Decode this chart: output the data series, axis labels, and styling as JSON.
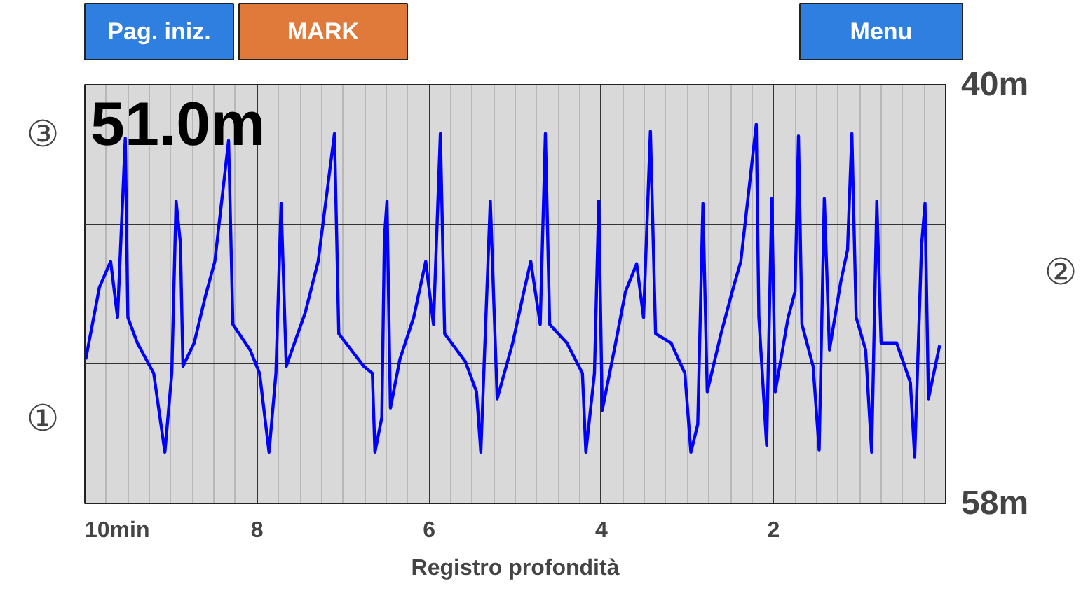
{
  "chart_data": {
    "type": "line",
    "title": "Registro profondità",
    "x": [
      9.99,
      9.83,
      9.7,
      9.62,
      9.53,
      9.5,
      9.39,
      9.2,
      9.07,
      8.99,
      8.94,
      8.89,
      8.86,
      8.73,
      8.6,
      8.49,
      8.33,
      8.28,
      8.08,
      7.97,
      7.86,
      7.78,
      7.72,
      7.66,
      7.44,
      7.29,
      7.1,
      7.05,
      6.76,
      6.66,
      6.63,
      6.55,
      6.52,
      6.49,
      6.45,
      6.34,
      6.18,
      6.04,
      5.95,
      5.87,
      5.82,
      5.58,
      5.45,
      5.4,
      5.29,
      5.21,
      5.03,
      4.9,
      4.82,
      4.71,
      4.65,
      4.6,
      4.4,
      4.22,
      4.18,
      4.08,
      4.03,
      3.99,
      3.85,
      3.72,
      3.59,
      3.51,
      3.43,
      3.37,
      3.19,
      3.03,
      2.96,
      2.88,
      2.82,
      2.77,
      2.61,
      2.48,
      2.38,
      2.2,
      2.17,
      2.08,
      2.02,
      1.98,
      1.83,
      1.75,
      1.71,
      1.67,
      1.54,
      1.47,
      1.41,
      1.35,
      1.22,
      1.14,
      1.09,
      1.04,
      0.93,
      0.86,
      0.8,
      0.75,
      0.57,
      0.41,
      0.36,
      0.28,
      0.24,
      0.2,
      0.07
    ],
    "series": [
      {
        "color": "#0000ff",
        "values": [
          51.8,
          48.7,
          47.6,
          50.0,
          42.3,
          50.0,
          51.1,
          52.4,
          55.8,
          52.4,
          45.0,
          46.8,
          52.1,
          51.1,
          49.1,
          47.6,
          42.4,
          50.3,
          51.4,
          52.4,
          55.8,
          52.4,
          45.1,
          52.1,
          49.8,
          47.6,
          42.1,
          50.7,
          52.1,
          52.4,
          55.8,
          54.3,
          46.6,
          45.0,
          53.9,
          51.8,
          50.0,
          47.6,
          50.3,
          42.1,
          50.7,
          51.9,
          53.2,
          55.8,
          45.0,
          53.5,
          51.1,
          48.9,
          47.6,
          50.3,
          42.1,
          50.3,
          51.1,
          52.4,
          55.8,
          52.4,
          45.0,
          54.0,
          51.4,
          48.9,
          47.7,
          50.0,
          42.0,
          50.7,
          51.1,
          52.4,
          55.8,
          54.6,
          45.1,
          53.2,
          50.7,
          48.9,
          47.6,
          41.7,
          50.0,
          55.5,
          44.9,
          53.2,
          50.0,
          48.9,
          42.2,
          50.3,
          52.1,
          55.7,
          44.9,
          51.4,
          48.5,
          47.1,
          42.1,
          50.0,
          51.4,
          55.8,
          45.0,
          51.1,
          51.1,
          52.8,
          56.0,
          46.9,
          45.1,
          53.5,
          51.2
        ]
      }
    ],
    "xlim": [
      10,
      0
    ],
    "ylim": [
      58,
      40
    ],
    "xticks": [
      {
        "value": 10,
        "label": "10min"
      },
      8,
      6,
      4,
      2
    ],
    "yticks": [
      {
        "value": 40,
        "label": "40m"
      },
      {
        "value": 46,
        "label": null
      },
      {
        "value": 52,
        "label": null
      },
      {
        "value": 58,
        "label": "58m"
      }
    ],
    "grid": true,
    "line_style": "solid",
    "marker": "none",
    "annotations": [
      "Pag. iniz.",
      "MARK",
      "Menu",
      "51.0m",
      "③",
      "①",
      "②"
    ]
  }
}
